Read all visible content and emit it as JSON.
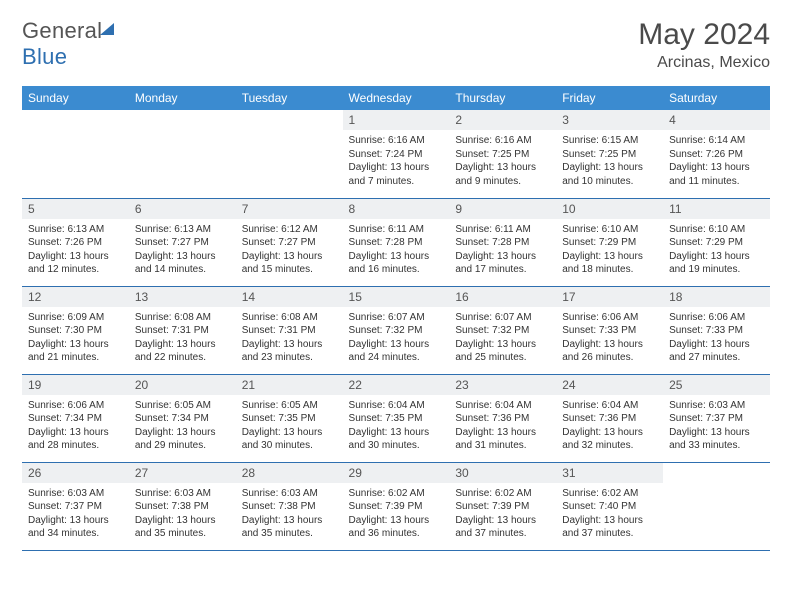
{
  "brand": {
    "part1": "General",
    "part2": "Blue"
  },
  "title": {
    "month": "May 2024",
    "location": "Arcinas, Mexico"
  },
  "colors": {
    "header_bg": "#3b8bd0",
    "header_text": "#ffffff",
    "rule": "#2e6fb0",
    "daynum_bg": "#eef0f2",
    "text": "#333333"
  },
  "day_headers": [
    "Sunday",
    "Monday",
    "Tuesday",
    "Wednesday",
    "Thursday",
    "Friday",
    "Saturday"
  ],
  "weeks": [
    [
      {
        "n": "",
        "sr": "",
        "ss": "",
        "dl": ""
      },
      {
        "n": "",
        "sr": "",
        "ss": "",
        "dl": ""
      },
      {
        "n": "",
        "sr": "",
        "ss": "",
        "dl": ""
      },
      {
        "n": "1",
        "sr": "Sunrise: 6:16 AM",
        "ss": "Sunset: 7:24 PM",
        "dl": "Daylight: 13 hours and 7 minutes."
      },
      {
        "n": "2",
        "sr": "Sunrise: 6:16 AM",
        "ss": "Sunset: 7:25 PM",
        "dl": "Daylight: 13 hours and 9 minutes."
      },
      {
        "n": "3",
        "sr": "Sunrise: 6:15 AM",
        "ss": "Sunset: 7:25 PM",
        "dl": "Daylight: 13 hours and 10 minutes."
      },
      {
        "n": "4",
        "sr": "Sunrise: 6:14 AM",
        "ss": "Sunset: 7:26 PM",
        "dl": "Daylight: 13 hours and 11 minutes."
      }
    ],
    [
      {
        "n": "5",
        "sr": "Sunrise: 6:13 AM",
        "ss": "Sunset: 7:26 PM",
        "dl": "Daylight: 13 hours and 12 minutes."
      },
      {
        "n": "6",
        "sr": "Sunrise: 6:13 AM",
        "ss": "Sunset: 7:27 PM",
        "dl": "Daylight: 13 hours and 14 minutes."
      },
      {
        "n": "7",
        "sr": "Sunrise: 6:12 AM",
        "ss": "Sunset: 7:27 PM",
        "dl": "Daylight: 13 hours and 15 minutes."
      },
      {
        "n": "8",
        "sr": "Sunrise: 6:11 AM",
        "ss": "Sunset: 7:28 PM",
        "dl": "Daylight: 13 hours and 16 minutes."
      },
      {
        "n": "9",
        "sr": "Sunrise: 6:11 AM",
        "ss": "Sunset: 7:28 PM",
        "dl": "Daylight: 13 hours and 17 minutes."
      },
      {
        "n": "10",
        "sr": "Sunrise: 6:10 AM",
        "ss": "Sunset: 7:29 PM",
        "dl": "Daylight: 13 hours and 18 minutes."
      },
      {
        "n": "11",
        "sr": "Sunrise: 6:10 AM",
        "ss": "Sunset: 7:29 PM",
        "dl": "Daylight: 13 hours and 19 minutes."
      }
    ],
    [
      {
        "n": "12",
        "sr": "Sunrise: 6:09 AM",
        "ss": "Sunset: 7:30 PM",
        "dl": "Daylight: 13 hours and 21 minutes."
      },
      {
        "n": "13",
        "sr": "Sunrise: 6:08 AM",
        "ss": "Sunset: 7:31 PM",
        "dl": "Daylight: 13 hours and 22 minutes."
      },
      {
        "n": "14",
        "sr": "Sunrise: 6:08 AM",
        "ss": "Sunset: 7:31 PM",
        "dl": "Daylight: 13 hours and 23 minutes."
      },
      {
        "n": "15",
        "sr": "Sunrise: 6:07 AM",
        "ss": "Sunset: 7:32 PM",
        "dl": "Daylight: 13 hours and 24 minutes."
      },
      {
        "n": "16",
        "sr": "Sunrise: 6:07 AM",
        "ss": "Sunset: 7:32 PM",
        "dl": "Daylight: 13 hours and 25 minutes."
      },
      {
        "n": "17",
        "sr": "Sunrise: 6:06 AM",
        "ss": "Sunset: 7:33 PM",
        "dl": "Daylight: 13 hours and 26 minutes."
      },
      {
        "n": "18",
        "sr": "Sunrise: 6:06 AM",
        "ss": "Sunset: 7:33 PM",
        "dl": "Daylight: 13 hours and 27 minutes."
      }
    ],
    [
      {
        "n": "19",
        "sr": "Sunrise: 6:06 AM",
        "ss": "Sunset: 7:34 PM",
        "dl": "Daylight: 13 hours and 28 minutes."
      },
      {
        "n": "20",
        "sr": "Sunrise: 6:05 AM",
        "ss": "Sunset: 7:34 PM",
        "dl": "Daylight: 13 hours and 29 minutes."
      },
      {
        "n": "21",
        "sr": "Sunrise: 6:05 AM",
        "ss": "Sunset: 7:35 PM",
        "dl": "Daylight: 13 hours and 30 minutes."
      },
      {
        "n": "22",
        "sr": "Sunrise: 6:04 AM",
        "ss": "Sunset: 7:35 PM",
        "dl": "Daylight: 13 hours and 30 minutes."
      },
      {
        "n": "23",
        "sr": "Sunrise: 6:04 AM",
        "ss": "Sunset: 7:36 PM",
        "dl": "Daylight: 13 hours and 31 minutes."
      },
      {
        "n": "24",
        "sr": "Sunrise: 6:04 AM",
        "ss": "Sunset: 7:36 PM",
        "dl": "Daylight: 13 hours and 32 minutes."
      },
      {
        "n": "25",
        "sr": "Sunrise: 6:03 AM",
        "ss": "Sunset: 7:37 PM",
        "dl": "Daylight: 13 hours and 33 minutes."
      }
    ],
    [
      {
        "n": "26",
        "sr": "Sunrise: 6:03 AM",
        "ss": "Sunset: 7:37 PM",
        "dl": "Daylight: 13 hours and 34 minutes."
      },
      {
        "n": "27",
        "sr": "Sunrise: 6:03 AM",
        "ss": "Sunset: 7:38 PM",
        "dl": "Daylight: 13 hours and 35 minutes."
      },
      {
        "n": "28",
        "sr": "Sunrise: 6:03 AM",
        "ss": "Sunset: 7:38 PM",
        "dl": "Daylight: 13 hours and 35 minutes."
      },
      {
        "n": "29",
        "sr": "Sunrise: 6:02 AM",
        "ss": "Sunset: 7:39 PM",
        "dl": "Daylight: 13 hours and 36 minutes."
      },
      {
        "n": "30",
        "sr": "Sunrise: 6:02 AM",
        "ss": "Sunset: 7:39 PM",
        "dl": "Daylight: 13 hours and 37 minutes."
      },
      {
        "n": "31",
        "sr": "Sunrise: 6:02 AM",
        "ss": "Sunset: 7:40 PM",
        "dl": "Daylight: 13 hours and 37 minutes."
      },
      {
        "n": "",
        "sr": "",
        "ss": "",
        "dl": ""
      }
    ]
  ]
}
